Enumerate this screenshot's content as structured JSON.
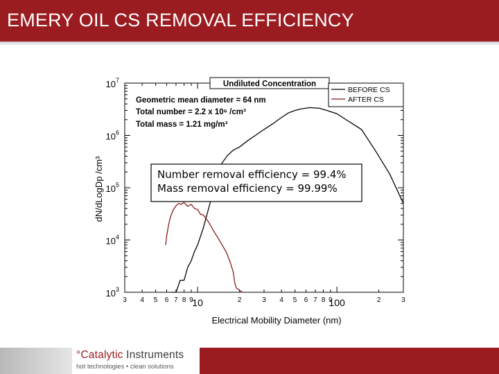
{
  "slide": {
    "title": "EMERY OIL CS REMOVAL EFFICIENCY",
    "colors": {
      "title_bar": "#9b1c20",
      "footer_bar": "#9b1c20"
    }
  },
  "logo": {
    "name_part1": "°Catalytic",
    "name_part2": "Instruments",
    "tagline": "hot technologies • clean solutions"
  },
  "chart_data": {
    "type": "line",
    "title": "Undiluted Concentration",
    "xlabel": "Electrical Mobility Diameter (nm)",
    "ylabel": "dN/dLogDp /cm³",
    "x_scale": "log",
    "y_scale": "log",
    "xlim": [
      3,
      300
    ],
    "ylim": [
      1000,
      10000000
    ],
    "x_tick_labels": [
      "3",
      "4",
      "5",
      "6",
      "7",
      "8",
      "9",
      "10",
      "2",
      "3",
      "4",
      "5",
      "6",
      "7",
      "8",
      "9",
      "100",
      "2",
      "3"
    ],
    "x_tick_values": [
      3,
      4,
      5,
      6,
      7,
      8,
      9,
      10,
      20,
      30,
      40,
      50,
      60,
      70,
      80,
      90,
      100,
      200,
      300
    ],
    "y_tick_labels": [
      {
        "base": "10",
        "exp": "3",
        "value": 1000
      },
      {
        "base": "10",
        "exp": "4",
        "value": 10000
      },
      {
        "base": "10",
        "exp": "5",
        "value": 100000
      },
      {
        "base": "10",
        "exp": "6",
        "value": 1000000
      },
      {
        "base": "10",
        "exp": "7",
        "value": 10000000
      }
    ],
    "stats": [
      "Geometric mean diameter = 64 nm",
      "Total number = 2.2 x 10⁶ /cm³",
      "Total mass = 1.21 mg/m³"
    ],
    "annotation": [
      "Number removal efficiency = 99.4%",
      "Mass removal efficiency = 99.99%"
    ],
    "legend_position": "top-right",
    "series": [
      {
        "name": "BEFORE CS",
        "color": "#000000",
        "x": [
          6.5,
          7,
          7.5,
          8,
          8.5,
          9,
          9.5,
          10,
          11,
          12,
          13,
          14,
          15,
          16.5,
          18,
          20,
          23,
          26,
          30,
          35,
          40,
          45,
          50,
          55,
          64,
          75,
          85,
          100,
          120,
          150,
          190,
          240,
          300
        ],
        "y": [
          1000,
          1000,
          1700,
          1700,
          3000,
          4000,
          6000,
          8000,
          17000,
          40000,
          90000,
          180000,
          300000,
          420000,
          520000,
          600000,
          800000,
          1000000,
          1300000,
          1700000,
          2200000,
          2700000,
          3000000,
          3200000,
          3400000,
          3300000,
          3000000,
          2600000,
          1900000,
          1300000,
          500000,
          180000,
          50000
        ]
      },
      {
        "name": "AFTER CS",
        "color": "#8b1a1a",
        "x": [
          5.9,
          6.0,
          6.2,
          6.4,
          6.7,
          7.0,
          7.3,
          7.6,
          8.0,
          8.5,
          9.0,
          9.5,
          10.0,
          10.5,
          11,
          12,
          13,
          14,
          15,
          16,
          17,
          18,
          18.5,
          19,
          20,
          21
        ],
        "y": [
          8000,
          12000,
          20000,
          28000,
          38000,
          45000,
          50000,
          48000,
          52000,
          44000,
          48000,
          40000,
          38000,
          31000,
          30000,
          22000,
          15000,
          11000,
          8000,
          6000,
          4000,
          2500,
          1500,
          1200,
          1100,
          1000
        ]
      }
    ]
  }
}
